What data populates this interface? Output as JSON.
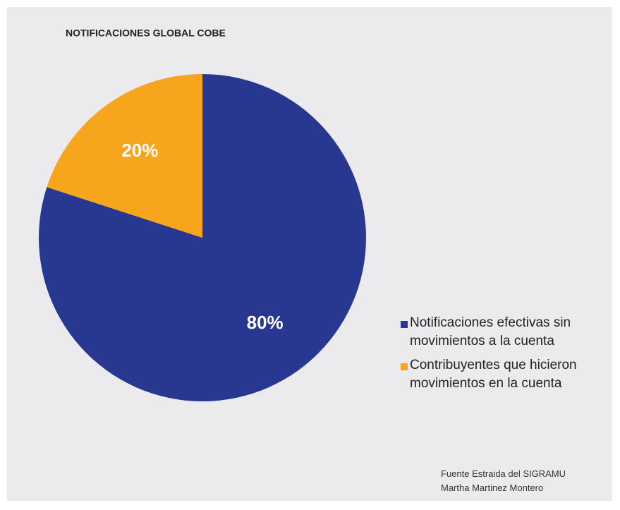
{
  "chart_data": {
    "type": "pie",
    "title": "NOTIFICACIONES GLOBAL COBE",
    "categories": [
      "Notificaciones efectivas sin movimientos a la cuenta",
      "Contribuyentes que hicieron movimientos en la cuenta"
    ],
    "values": [
      80,
      20
    ],
    "value_labels": [
      "80%",
      "20%"
    ],
    "colors": [
      "#283891",
      "#f8a51e"
    ],
    "notes": [
      "Fuente Estraida del SIGRAMU",
      "Martha Martinez Montero"
    ]
  }
}
